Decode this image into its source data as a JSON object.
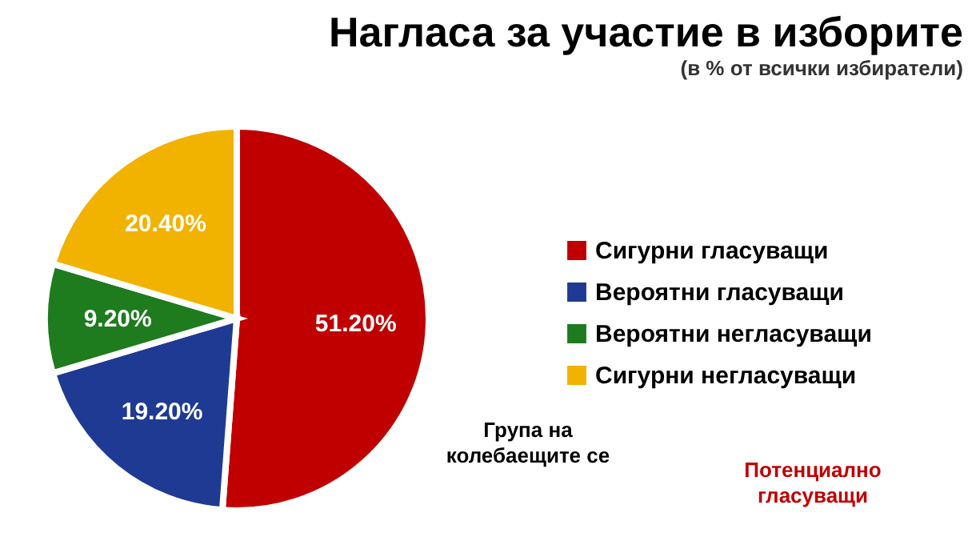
{
  "chart_data": {
    "type": "pie",
    "title": "Нагласа за участие в изборите",
    "subtitle": "(в % от всички избиратели)",
    "categories": [
      "Сигурни гласуващи",
      "Вероятни гласуващи",
      "Вероятни негласуващи",
      "Сигурни негласуващи"
    ],
    "values": [
      51.2,
      19.2,
      9.2,
      20.4
    ],
    "colors": [
      "#c00000",
      "#1f3a93",
      "#1e7b1e",
      "#f2b200"
    ],
    "value_labels": [
      "51.20%",
      "19.20%",
      "9.20%",
      "20.40%"
    ],
    "legend": "right",
    "annotations": [
      "Група на колебаещите се",
      "Потенциално гласуващи"
    ]
  }
}
